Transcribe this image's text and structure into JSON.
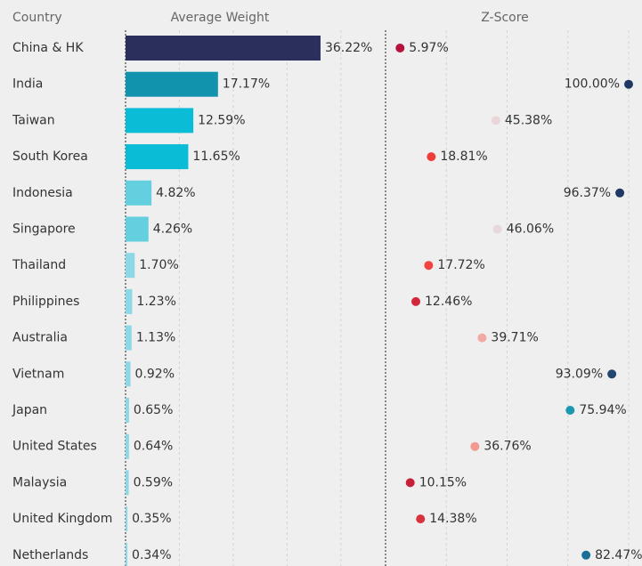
{
  "chart_data": {
    "type": "bar",
    "header": "Country",
    "categories": [
      "China & HK",
      "India",
      "Taiwan",
      "South Korea",
      "Indonesia",
      "Singapore",
      "Thailand",
      "Philippines",
      "Australia",
      "Vietnam",
      "Japan",
      "United States",
      "Malaysia",
      "United Kingdom",
      "Netherlands"
    ],
    "series": [
      {
        "name": "Average Weight",
        "kind": "bar",
        "values": [
          36.22,
          17.17,
          12.59,
          11.65,
          4.82,
          4.26,
          1.7,
          1.23,
          1.13,
          0.92,
          0.65,
          0.64,
          0.59,
          0.35,
          0.34
        ],
        "value_labels": [
          "36.22%",
          "17.17%",
          "12.59%",
          "11.65%",
          "4.82%",
          "4.26%",
          "1.70%",
          "1.23%",
          "1.13%",
          "0.92%",
          "0.65%",
          "0.64%",
          "0.59%",
          "0.35%",
          "0.34%"
        ],
        "colors": [
          "#2b2f5b",
          "#1193ad",
          "#0bbcd6",
          "#0bbcd6",
          "#63cfdf",
          "#63cfdf",
          "#8dd8e6",
          "#8dd8e6",
          "#8dd8e6",
          "#8dd8e6",
          "#8dd8e6",
          "#8dd8e6",
          "#8dd8e6",
          "#8dd8e6",
          "#8dd8e6"
        ],
        "xlim": [
          0,
          48.3
        ],
        "xticks": [
          0,
          10,
          20,
          30,
          40
        ]
      },
      {
        "name": "Z-Score",
        "kind": "dot",
        "values": [
          5.97,
          100.0,
          45.38,
          18.81,
          96.37,
          46.06,
          17.72,
          12.46,
          39.71,
          93.09,
          75.94,
          36.76,
          10.15,
          14.38,
          82.47
        ],
        "value_labels": [
          "5.97%",
          "100.00%",
          "45.38%",
          "18.81%",
          "96.37%",
          "46.06%",
          "17.72%",
          "12.46%",
          "39.71%",
          "93.09%",
          "75.94%",
          "36.76%",
          "10.15%",
          "14.38%",
          "82.47%"
        ],
        "colors": [
          "#b5123d",
          "#1f3864",
          "#ead5d8",
          "#ef3e3a",
          "#1f3864",
          "#e6d8dc",
          "#f0453e",
          "#d2283b",
          "#f2a8a3",
          "#23486f",
          "#1c97b2",
          "#f29a91",
          "#c81f3a",
          "#d8323d",
          "#1a6f96"
        ],
        "xlim": [
          0,
          100
        ],
        "xticks": [
          0,
          25,
          50,
          75,
          100
        ]
      }
    ]
  }
}
